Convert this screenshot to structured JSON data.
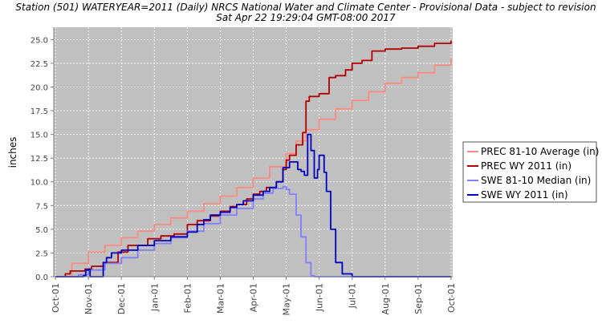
{
  "chart_data": {
    "type": "line",
    "title": "Station (501) WATERYEAR=2011 (Daily) NRCS National Water and Climate Center - Provisional Data - subject to revision",
    "subtitle": "Sat Apr 22 19:29:04 GMT-08:00 2017",
    "ylabel": "inches",
    "xlabel": "",
    "ylim": [
      0,
      26.3
    ],
    "yticks": [
      0.0,
      2.5,
      5.0,
      7.5,
      10.0,
      12.5,
      15.0,
      17.5,
      20.0,
      22.5,
      25.0
    ],
    "ytick_labels": [
      "0.0",
      "2.5",
      "5.0",
      "7.5",
      "10.0",
      "12.5",
      "15.0",
      "17.5",
      "20.0",
      "22.5",
      "25.0"
    ],
    "x_unit": "month (Oct 1 = 0)",
    "xlim": [
      -0.05,
      12.05
    ],
    "xticks": [
      0,
      1,
      2,
      3,
      4,
      5,
      6,
      7,
      8,
      9,
      10,
      11,
      12
    ],
    "xtick_labels": [
      "Oct-01",
      "Nov-01",
      "Dec-01",
      "Jan-01",
      "Feb-01",
      "Mar-01",
      "Apr-01",
      "May-01",
      "Jun-01",
      "Jul-01",
      "Aug-01",
      "Sep-01",
      "Oct-01"
    ],
    "grid": true,
    "legend_position": "right",
    "series": [
      {
        "name": "PREC 81-10 Average (in)",
        "color": "#ff8a80",
        "x": [
          0,
          0.5,
          1,
          1.5,
          2,
          2.5,
          3,
          3.5,
          4,
          4.5,
          5,
          5.5,
          6,
          6.5,
          7,
          7.3,
          7.6,
          8,
          8.5,
          9,
          9.5,
          10,
          10.5,
          11,
          11.5,
          12
        ],
        "y": [
          0,
          1.4,
          2.6,
          3.3,
          4.1,
          4.8,
          5.5,
          6.2,
          6.9,
          7.7,
          8.5,
          9.4,
          10.4,
          11.6,
          13.0,
          14.3,
          15.5,
          16.6,
          17.7,
          18.6,
          19.5,
          20.4,
          21.0,
          21.5,
          22.3,
          23.0
        ]
      },
      {
        "name": "PREC WY 2011  (in)",
        "color": "#b00000",
        "x": [
          0,
          0.3,
          0.45,
          0.9,
          1.1,
          1.5,
          1.9,
          2.2,
          2.8,
          3.2,
          3.6,
          4.0,
          4.3,
          4.7,
          5.0,
          5.3,
          5.5,
          5.8,
          6.0,
          6.2,
          6.4,
          6.7,
          6.9,
          7.0,
          7.1,
          7.3,
          7.5,
          7.6,
          7.7,
          8.0,
          8.3,
          8.5,
          8.8,
          9.0,
          9.3,
          9.6,
          10.0,
          10.5,
          11.0,
          11.5,
          12
        ],
        "y": [
          0,
          0.3,
          0.6,
          0.8,
          1.1,
          1.5,
          2.6,
          3.3,
          4.0,
          4.3,
          4.5,
          5.5,
          5.9,
          6.4,
          6.9,
          7.4,
          7.6,
          8.2,
          8.7,
          9.0,
          9.4,
          10.0,
          11.3,
          12.3,
          12.8,
          13.9,
          15.2,
          18.5,
          19.0,
          19.3,
          21.0,
          21.2,
          21.8,
          22.5,
          22.8,
          23.8,
          24.0,
          24.1,
          24.3,
          24.6,
          24.9
        ]
      },
      {
        "name": "SWE 81-10 Median (in)",
        "color": "#8080ff",
        "x": [
          0,
          0.7,
          1.0,
          1.5,
          2.0,
          2.5,
          3.0,
          3.5,
          4.0,
          4.5,
          5.0,
          5.5,
          6.0,
          6.3,
          6.6,
          6.9,
          7.0,
          7.1,
          7.3,
          7.45,
          7.6,
          7.75,
          7.85,
          8.0,
          9.0,
          10.0,
          11.0,
          12.0
        ],
        "y": [
          0,
          0.2,
          0.7,
          1.4,
          2.0,
          2.8,
          3.5,
          4.1,
          4.8,
          5.6,
          6.5,
          7.2,
          8.2,
          8.8,
          9.3,
          9.5,
          9.2,
          8.7,
          6.5,
          4.2,
          1.5,
          0.1,
          0.0,
          0.0,
          0.0,
          0.0,
          0.0,
          0.0
        ]
      },
      {
        "name": "SWE WY 2011  (in)",
        "color": "#0000c0",
        "x": [
          0,
          0.85,
          0.92,
          1.0,
          1.05,
          1.4,
          1.45,
          1.55,
          1.7,
          2.0,
          2.5,
          3.0,
          3.5,
          4.0,
          4.3,
          4.5,
          4.7,
          5.0,
          5.3,
          5.5,
          5.7,
          6.0,
          6.3,
          6.5,
          6.7,
          6.9,
          7.1,
          7.25,
          7.35,
          7.45,
          7.55,
          7.65,
          7.75,
          7.85,
          7.95,
          8.0,
          8.05,
          8.15,
          8.22,
          8.35,
          8.5,
          8.7,
          9.0,
          10.0,
          11.0,
          12.0
        ],
        "y": [
          0,
          0.1,
          0.7,
          0.8,
          0.0,
          0.0,
          1.5,
          2.0,
          2.5,
          2.8,
          3.3,
          3.8,
          4.2,
          4.7,
          5.5,
          6.0,
          6.5,
          6.8,
          7.3,
          7.6,
          8.0,
          8.6,
          9.0,
          9.4,
          10.0,
          11.5,
          12.1,
          12.1,
          11.3,
          11.1,
          10.7,
          15.0,
          13.3,
          10.4,
          11.3,
          12.8,
          12.8,
          11.0,
          9.0,
          5.0,
          1.5,
          0.3,
          0.0,
          0.0,
          0.0,
          0.0
        ]
      }
    ]
  }
}
